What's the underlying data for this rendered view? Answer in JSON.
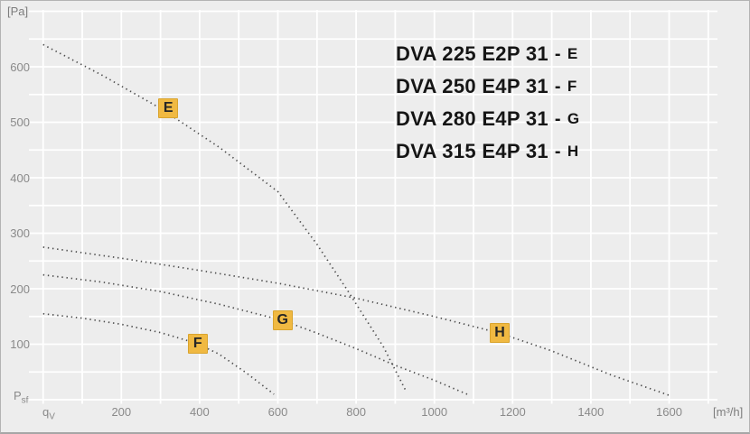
{
  "figure": {
    "y_unit": "[Pa]",
    "x_unit": "[m³/h]",
    "y_axis_var": {
      "main": "P",
      "sub": "sf"
    },
    "x_axis_var": {
      "main": "q",
      "sub": "V"
    }
  },
  "legend": {
    "dash": "-",
    "items": [
      {
        "model": "DVA 225 E2P 31",
        "suffix": "E"
      },
      {
        "model": "DVA 250 E4P 31",
        "suffix": "F"
      },
      {
        "model": "DVA 280 E4P 31",
        "suffix": "G"
      },
      {
        "model": "DVA 315 E4P 31",
        "suffix": "H"
      }
    ]
  },
  "chart_data": {
    "type": "line",
    "style": "dotted",
    "title": "",
    "xlabel": "qV",
    "ylabel": "Psf",
    "x_unit": "m³/h",
    "y_unit": "Pa",
    "xlim": [
      0,
      1750
    ],
    "ylim": [
      0,
      700
    ],
    "x_ticks": [
      200,
      400,
      600,
      800,
      1000,
      1200,
      1400,
      1600
    ],
    "y_ticks": [
      100,
      200,
      300,
      400,
      500,
      600
    ],
    "grid": {
      "x_step": 100,
      "x_max": 1700,
      "y_step": 50,
      "y_max": 700,
      "color": "#ffffff"
    },
    "curve_color": "#4d4d4d",
    "badge_color": "#f0b942",
    "series": [
      {
        "name": "DVA 225 E2P 31 - E",
        "badge": "E",
        "badge_at": {
          "q": 320,
          "pa": 525
        },
        "points": [
          [
            0,
            640
          ],
          [
            150,
            585
          ],
          [
            300,
            525
          ],
          [
            450,
            455
          ],
          [
            600,
            375
          ],
          [
            700,
            280
          ],
          [
            780,
            195
          ],
          [
            870,
            95
          ],
          [
            928,
            15
          ]
        ]
      },
      {
        "name": "DVA 250 E4P 31 - F",
        "badge": "F",
        "badge_at": {
          "q": 395,
          "pa": 101
        },
        "points": [
          [
            0,
            155
          ],
          [
            100,
            147
          ],
          [
            200,
            136
          ],
          [
            300,
            121
          ],
          [
            395,
            101
          ],
          [
            450,
            82
          ],
          [
            520,
            48
          ],
          [
            590,
            10
          ]
        ]
      },
      {
        "name": "DVA 280 E4P 31 - G",
        "badge": "G",
        "badge_at": {
          "q": 612,
          "pa": 143
        },
        "points": [
          [
            0,
            225
          ],
          [
            150,
            212
          ],
          [
            300,
            195
          ],
          [
            450,
            172
          ],
          [
            612,
            143
          ],
          [
            700,
            120
          ],
          [
            800,
            92
          ],
          [
            900,
            62
          ],
          [
            1000,
            35
          ],
          [
            1090,
            8
          ]
        ]
      },
      {
        "name": "DVA 315 E4P 31 - H",
        "badge": "H",
        "badge_at": {
          "q": 1167,
          "pa": 120
        },
        "points": [
          [
            0,
            275
          ],
          [
            200,
            255
          ],
          [
            400,
            233
          ],
          [
            600,
            210
          ],
          [
            800,
            183
          ],
          [
            1000,
            150
          ],
          [
            1167,
            120
          ],
          [
            1300,
            88
          ],
          [
            1450,
            45
          ],
          [
            1600,
            8
          ]
        ]
      }
    ]
  }
}
